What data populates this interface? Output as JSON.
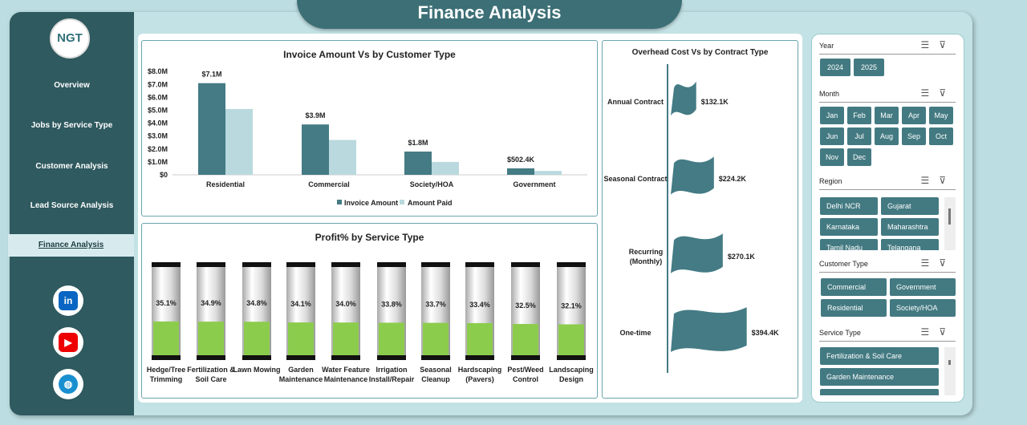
{
  "header": {
    "title": "Finance Analysis"
  },
  "sidebar": {
    "logo": "NGT",
    "items": [
      {
        "label": "Overview"
      },
      {
        "label": "Jobs by Service Type"
      },
      {
        "label": "Customer Analysis"
      },
      {
        "label": "Lead Source Analysis"
      },
      {
        "label": "Finance Analysis",
        "active": true
      }
    ],
    "social": [
      "linkedin-icon",
      "youtube-icon",
      "globe-icon"
    ]
  },
  "colors": {
    "dark": "#447b84",
    "light": "#b9d9de",
    "green": "#8ccc4c"
  },
  "chart_data": [
    {
      "type": "bar",
      "title": "Invoice Amount Vs  by Customer Type",
      "categories": [
        "Residential",
        "Commercial",
        "Society/HOA",
        "Government"
      ],
      "series": [
        {
          "name": "Invoice Amount",
          "values": [
            7.1,
            3.9,
            1.8,
            0.5024
          ],
          "labels": [
            "$7.1M",
            "$3.9M",
            "$1.8M",
            "$502.4K"
          ]
        },
        {
          "name": "Amount Paid",
          "values": [
            5.1,
            2.7,
            1.0,
            0.3
          ]
        }
      ],
      "yticks": [
        "$0",
        "$1.0M",
        "$2.0M",
        "$3.0M",
        "$4.0M",
        "$5.0M",
        "$6.0M",
        "$7.0M",
        "$8.0M"
      ],
      "ylim": [
        0,
        8
      ],
      "legend": "bottom"
    },
    {
      "type": "bar",
      "title": "Profit% by Service Type",
      "categories": [
        "Hedge/Tree|Trimming",
        "Fertilization &|Soil Care",
        "Lawn Mowing",
        "Garden|Maintenance",
        "Water Feature|Maintenance",
        "Irrigation|Install/Repair",
        "Seasonal|Cleanup",
        "Hardscaping|(Pavers)",
        "Pest/Weed|Control",
        "Landscaping|Design"
      ],
      "values": [
        35.1,
        34.9,
        34.8,
        34.1,
        34.0,
        33.8,
        33.7,
        33.4,
        32.5,
        32.1
      ],
      "labels": [
        "35.1%",
        "34.9%",
        "34.8%",
        "34.1%",
        "34.0%",
        "33.8%",
        "33.7%",
        "33.4%",
        "32.5%",
        "32.1%"
      ],
      "ylim": [
        0,
        100
      ]
    },
    {
      "type": "bar",
      "title": "Overhead Cost Vs  by Contract Type",
      "categories": [
        "Annual Contract",
        "Seasonal Contract",
        "Recurring|(Monthly)",
        "One-time"
      ],
      "values": [
        132.1,
        224.2,
        270.1,
        394.4
      ],
      "labels": [
        "$132.1K",
        "$224.2K",
        "$270.1K",
        "$394.4K"
      ]
    }
  ],
  "slicers": [
    {
      "title": "Year",
      "items": [
        "2024",
        "2025"
      ]
    },
    {
      "title": "Month",
      "items": [
        "Jan",
        "Feb",
        "Mar",
        "Apr",
        "May",
        "Jun",
        "Jul",
        "Aug",
        "Sep",
        "Oct",
        "Nov",
        "Dec"
      ]
    },
    {
      "title": "Region",
      "items": [
        "Delhi NCR",
        "Gujarat",
        "Karnataka",
        "Maharashtra",
        "Tamil Nadu",
        "Telangana"
      ]
    },
    {
      "title": "Customer Type",
      "items": [
        "Commercial",
        "Government",
        "Residential",
        "Society/HOA"
      ]
    },
    {
      "title": "Service Type",
      "items": [
        "Fertilization & Soil Care",
        "Garden Maintenance",
        ""
      ]
    }
  ]
}
